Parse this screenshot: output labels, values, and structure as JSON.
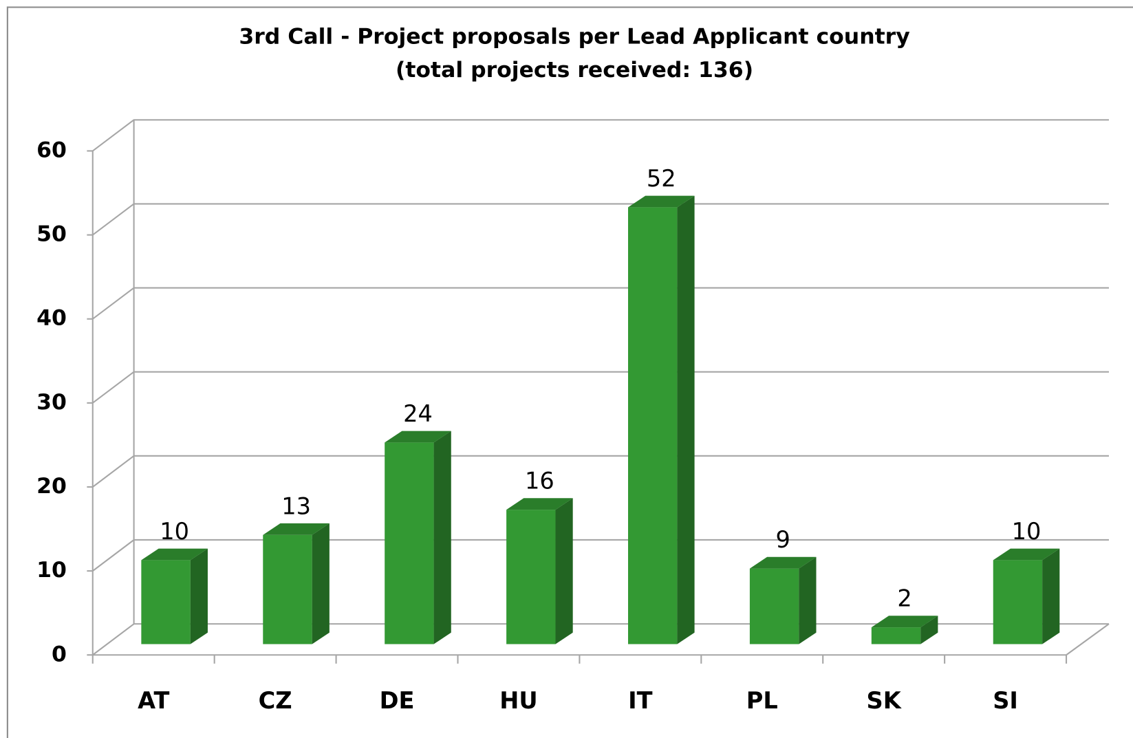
{
  "chart_data": {
    "type": "bar3d",
    "title": "3rd Call - Project proposals per Lead Applicant country",
    "subtitle": "(total projects received: 136)",
    "categories": [
      "AT",
      "CZ",
      "DE",
      "HU",
      "IT",
      "PL",
      "SK",
      "SI"
    ],
    "values": [
      10,
      13,
      24,
      16,
      52,
      9,
      2,
      10
    ],
    "color": "#339933",
    "ylim": [
      0,
      60
    ],
    "yticks": [
      0,
      10,
      20,
      30,
      40,
      50,
      60
    ],
    "grid": true
  }
}
